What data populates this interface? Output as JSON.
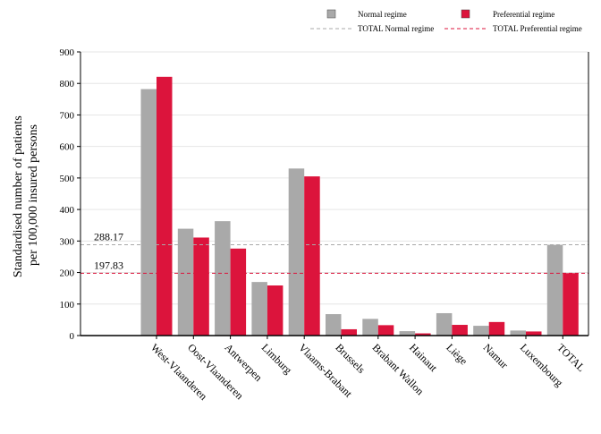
{
  "chart_data": {
    "type": "bar",
    "ylabel_line1": "Standardised number of patients",
    "ylabel_line2": "per 100,000 insured persons",
    "categories": [
      "West-Vlaanderen",
      "Oost-Vlaanderen",
      "Antwerpen",
      "Limburg",
      "Vlaams-Brabant",
      "Brussels",
      "Brabant Wallon",
      "Hainaut",
      "Liège",
      "Namur",
      "Luxembourg",
      "TOTAL"
    ],
    "ylim": [
      0,
      900
    ],
    "yticks": [
      0,
      100,
      200,
      300,
      400,
      500,
      600,
      700,
      800,
      900
    ],
    "grid": true,
    "legend_position": "top-right",
    "series": [
      {
        "name": "Normal regime",
        "color": "#a9a9a9",
        "values": [
          782,
          339,
          363,
          170,
          530,
          68,
          53,
          14,
          71,
          31,
          16,
          288
        ]
      },
      {
        "name": "Preferential regime",
        "color": "#dc143c",
        "values": [
          821,
          311,
          276,
          159,
          505,
          20,
          33,
          7,
          34,
          43,
          13,
          198
        ]
      }
    ],
    "reference_lines": [
      {
        "name": "TOTAL Normal regime",
        "value": 288.17,
        "label": "288.17",
        "color": "#a9a9a9"
      },
      {
        "name": "TOTAL Preferential regime",
        "value": 197.83,
        "label": "197.83",
        "color": "#dc143c"
      }
    ]
  }
}
